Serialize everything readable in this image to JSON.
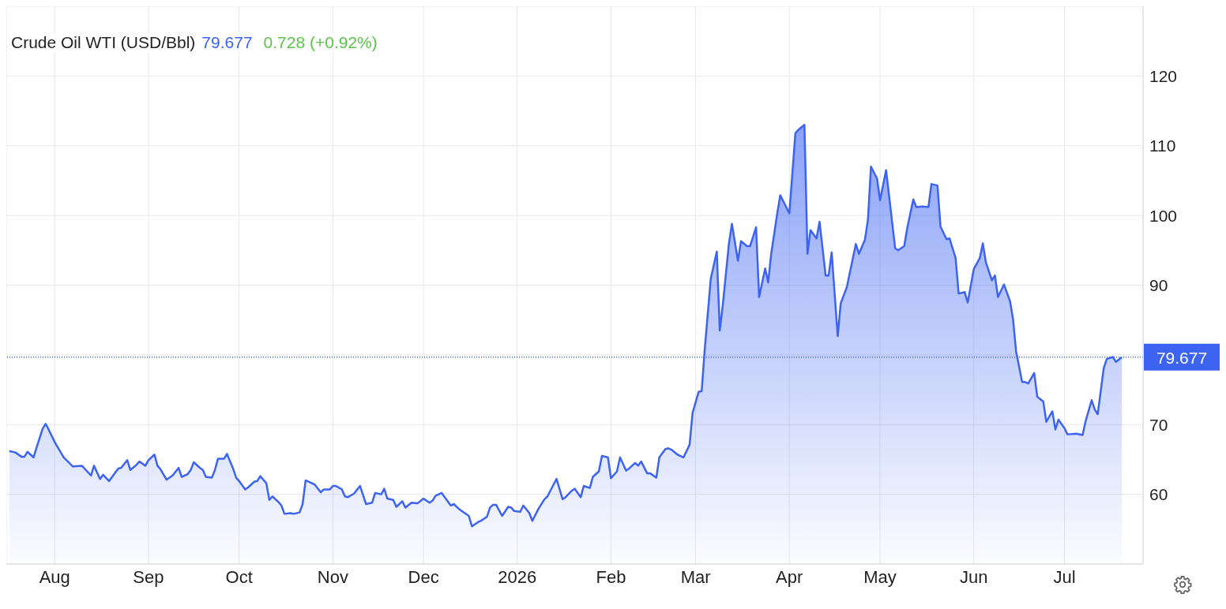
{
  "chart_data": {
    "type": "area",
    "title": "Crude Oil WTI (USD/Bbl)",
    "subtitle": "79.677",
    "annotations": [
      "0.728 (+0.92%)"
    ],
    "color": "#3d63f2",
    "x": [
      "2025-07-17",
      "2025-07-19",
      "2025-07-21",
      "2025-07-22",
      "2025-07-23",
      "2025-07-25",
      "2025-07-26",
      "2025-07-28",
      "2025-07-29",
      "2025-07-30",
      "2025-08-01",
      "2025-08-04",
      "2025-08-07",
      "2025-08-10",
      "2025-08-13",
      "2025-08-14",
      "2025-08-16",
      "2025-08-17",
      "2025-08-19",
      "2025-08-22",
      "2025-08-23",
      "2025-08-25",
      "2025-08-26",
      "2025-08-28",
      "2025-08-29",
      "2025-08-31",
      "2025-09-01",
      "2025-09-03",
      "2025-09-04",
      "2025-09-05",
      "2025-09-07",
      "2025-09-09",
      "2025-09-11",
      "2025-09-12",
      "2025-09-14",
      "2025-09-15",
      "2025-09-16",
      "2025-09-18",
      "2025-09-19",
      "2025-09-20",
      "2025-09-22",
      "2025-09-23",
      "2025-09-24",
      "2025-09-26",
      "2025-09-27",
      "2025-09-29",
      "2025-09-30",
      "2025-10-01",
      "2025-10-03",
      "2025-10-04",
      "2025-10-06",
      "2025-10-07",
      "2025-10-08",
      "2025-10-10",
      "2025-10-11",
      "2025-10-12",
      "2025-10-14",
      "2025-10-15",
      "2025-10-16",
      "2025-10-18",
      "2025-10-19",
      "2025-10-21",
      "2025-10-22",
      "2025-10-23",
      "2025-10-25",
      "2025-10-26",
      "2025-10-28",
      "2025-10-29",
      "2025-10-31",
      "2025-11-01",
      "2025-11-02",
      "2025-11-04",
      "2025-11-05",
      "2025-11-06",
      "2025-11-08",
      "2025-11-10",
      "2025-11-12",
      "2025-11-14",
      "2025-11-15",
      "2025-11-17",
      "2025-11-18",
      "2025-11-19",
      "2025-11-21",
      "2025-11-22",
      "2025-11-24",
      "2025-11-25",
      "2025-11-27",
      "2025-11-29",
      "2025-12-01",
      "2025-12-03",
      "2025-12-04",
      "2025-12-05",
      "2025-12-07",
      "2025-12-09",
      "2025-12-10",
      "2025-12-11",
      "2025-12-13",
      "2025-12-14",
      "2025-12-16",
      "2025-12-17",
      "2025-12-19",
      "2025-12-20",
      "2025-12-22",
      "2025-12-23",
      "2025-12-24",
      "2025-12-25",
      "2025-12-27",
      "2025-12-29",
      "2025-12-30",
      "2025-12-31",
      "2026-01-02",
      "2026-01-03",
      "2026-01-05",
      "2026-01-06",
      "2026-01-08",
      "2026-01-10",
      "2026-01-11",
      "2026-01-13",
      "2026-01-14",
      "2026-01-16",
      "2026-01-17",
      "2026-01-19",
      "2026-01-20",
      "2026-01-22",
      "2026-01-23",
      "2026-01-25",
      "2026-01-26",
      "2026-01-28",
      "2026-01-29",
      "2026-01-31",
      "2026-02-01",
      "2026-02-03",
      "2026-02-04",
      "2026-02-06",
      "2026-02-07",
      "2026-02-09",
      "2026-02-10",
      "2026-02-11",
      "2026-02-13",
      "2026-02-14",
      "2026-02-16",
      "2026-02-17",
      "2026-02-19",
      "2026-02-20",
      "2026-02-21",
      "2026-02-23",
      "2026-02-24",
      "2026-02-25",
      "2026-02-27",
      "2026-02-28",
      "2026-03-02",
      "2026-03-03",
      "2026-03-04",
      "2026-03-06",
      "2026-03-08",
      "2026-03-09",
      "2026-03-10",
      "2026-03-12",
      "2026-03-13",
      "2026-03-15",
      "2026-03-16",
      "2026-03-18",
      "2026-03-19",
      "2026-03-21",
      "2026-03-22",
      "2026-03-24",
      "2026-03-25",
      "2026-03-26",
      "2026-03-28",
      "2026-03-29",
      "2026-04-01",
      "2026-04-03",
      "2026-04-04",
      "2026-04-06",
      "2026-04-07",
      "2026-04-08",
      "2026-04-10",
      "2026-04-11",
      "2026-04-13",
      "2026-04-14",
      "2026-04-15",
      "2026-04-17",
      "2026-04-18",
      "2026-04-20",
      "2026-04-23",
      "2026-04-24",
      "2026-04-26",
      "2026-04-27",
      "2026-04-28",
      "2026-04-30",
      "2026-05-01",
      "2026-05-03",
      "2026-05-04",
      "2026-05-06",
      "2026-05-07",
      "2026-05-09",
      "2026-05-10",
      "2026-05-12",
      "2026-05-13",
      "2026-05-15",
      "2026-05-17",
      "2026-05-18",
      "2026-05-20",
      "2026-05-21",
      "2026-05-23",
      "2026-05-24",
      "2026-05-26",
      "2026-05-27",
      "2026-05-29",
      "2026-05-30",
      "2026-06-01",
      "2026-06-03",
      "2026-06-04",
      "2026-06-05",
      "2026-06-07",
      "2026-06-08",
      "2026-06-09",
      "2026-06-11",
      "2026-06-13",
      "2026-06-14",
      "2026-06-15",
      "2026-06-17",
      "2026-06-18",
      "2026-06-19",
      "2026-06-21",
      "2026-06-22",
      "2026-06-24",
      "2026-06-25",
      "2026-06-27",
      "2026-06-28",
      "2026-06-29",
      "2026-07-01",
      "2026-07-02",
      "2026-07-05",
      "2026-07-07",
      "2026-07-08",
      "2026-07-10",
      "2026-07-11",
      "2026-07-12",
      "2026-07-14",
      "2026-07-15",
      "2026-07-17",
      "2026-07-18",
      "2026-07-20"
    ],
    "values": [
      66.2,
      66.0,
      65.4,
      65.4,
      66.1,
      65.3,
      66.7,
      69.4,
      70.1,
      69.3,
      67.5,
      65.3,
      64.0,
      64.1,
      62.7,
      64.1,
      62.2,
      62.8,
      61.9,
      63.7,
      63.8,
      64.9,
      63.5,
      64.2,
      64.7,
      64.1,
      64.9,
      65.7,
      64.1,
      63.6,
      62.1,
      62.7,
      63.8,
      62.5,
      62.9,
      63.5,
      64.6,
      63.8,
      63.5,
      62.5,
      62.4,
      63.5,
      65.1,
      65.1,
      65.8,
      63.7,
      62.4,
      61.9,
      60.7,
      61.0,
      61.8,
      61.9,
      62.6,
      61.6,
      59.2,
      59.7,
      58.9,
      58.4,
      57.2,
      57.3,
      57.2,
      57.4,
      58.6,
      62.0,
      61.6,
      61.4,
      60.3,
      60.7,
      60.7,
      61.2,
      61.2,
      60.7,
      59.7,
      59.6,
      60.1,
      61.2,
      58.6,
      58.8,
      60.2,
      60.0,
      60.8,
      59.4,
      59.2,
      58.2,
      59.0,
      58.1,
      58.8,
      58.7,
      59.4,
      58.8,
      59.1,
      59.8,
      60.2,
      59.0,
      58.4,
      58.6,
      57.8,
      57.5,
      56.9,
      55.4,
      56.0,
      56.2,
      56.8,
      58.1,
      58.5,
      58.5,
      56.9,
      58.2,
      58.1,
      57.6,
      57.5,
      58.4,
      57.3,
      56.2,
      57.9,
      59.3,
      59.7,
      61.4,
      62.2,
      59.3,
      59.6,
      60.5,
      60.8,
      59.6,
      61.2,
      60.9,
      62.5,
      63.3,
      65.5,
      65.3,
      62.3,
      63.3,
      65.3,
      63.4,
      63.7,
      64.5,
      64.1,
      64.7,
      63.0,
      63.0,
      62.4,
      65.3,
      66.5,
      66.6,
      66.4,
      65.7,
      65.5,
      65.3,
      67.1,
      71.7,
      74.7,
      74.8,
      80.7,
      90.9,
      94.8,
      83.5,
      87.2,
      95.9,
      98.8,
      93.5,
      96.3,
      95.6,
      95.6,
      98.3,
      88.3,
      92.4,
      90.4,
      94.5,
      100.3,
      102.9,
      100.3,
      111.8,
      112.3,
      113.0,
      94.5,
      97.9,
      96.7,
      99.1,
      91.4,
      91.4,
      94.7,
      82.7,
      87.4,
      89.7,
      95.9,
      94.5,
      96.5,
      99.4,
      107.0,
      105.3,
      102.2,
      106.5,
      102.8,
      95.3,
      95.0,
      95.6,
      98.2,
      102.3,
      101.2,
      101.3,
      101.2,
      104.5,
      104.3,
      98.4,
      96.6,
      96.7,
      93.9,
      88.8,
      89.0,
      87.5,
      92.3,
      93.9,
      96.0,
      93.3,
      90.7,
      91.4,
      88.3,
      90.1,
      87.7,
      85.1,
      80.5,
      76.1,
      76.1,
      75.9,
      77.4,
      74.0,
      73.3,
      70.4,
      71.9,
      69.3,
      70.7,
      69.5,
      68.6,
      68.7,
      68.5,
      70.5,
      73.5,
      72.2,
      71.5,
      78.1,
      79.4,
      79.7,
      79.0,
      79.677
    ],
    "xlim": [
      "2025-07-16",
      "2026-07-27"
    ],
    "xticks": [
      {
        "value": "2025-08-01",
        "label": "Aug"
      },
      {
        "value": "2025-09-01",
        "label": "Sep"
      },
      {
        "value": "2025-10-01",
        "label": "Oct"
      },
      {
        "value": "2025-11-01",
        "label": "Nov"
      },
      {
        "value": "2025-12-01",
        "label": "Dec"
      },
      {
        "value": "2026-01-01",
        "label": "2026"
      },
      {
        "value": "2026-02-01",
        "label": "Feb"
      },
      {
        "value": "2026-03-01",
        "label": "Mar"
      },
      {
        "value": "2026-04-01",
        "label": "Apr"
      },
      {
        "value": "2026-05-01",
        "label": "May"
      },
      {
        "value": "2026-06-01",
        "label": "Jun"
      },
      {
        "value": "2026-07-01",
        "label": "Jul"
      }
    ],
    "ylim": [
      50,
      130
    ],
    "yticks": [
      60,
      70,
      {
        "value": 80,
        "label": null
      },
      90,
      100,
      110,
      120
    ],
    "ref_lines": [
      {
        "axis": "y",
        "value": 79.677,
        "label": "79.677",
        "color": "#3d63f2",
        "line_style": "dotted"
      }
    ],
    "grid": true
  }
}
